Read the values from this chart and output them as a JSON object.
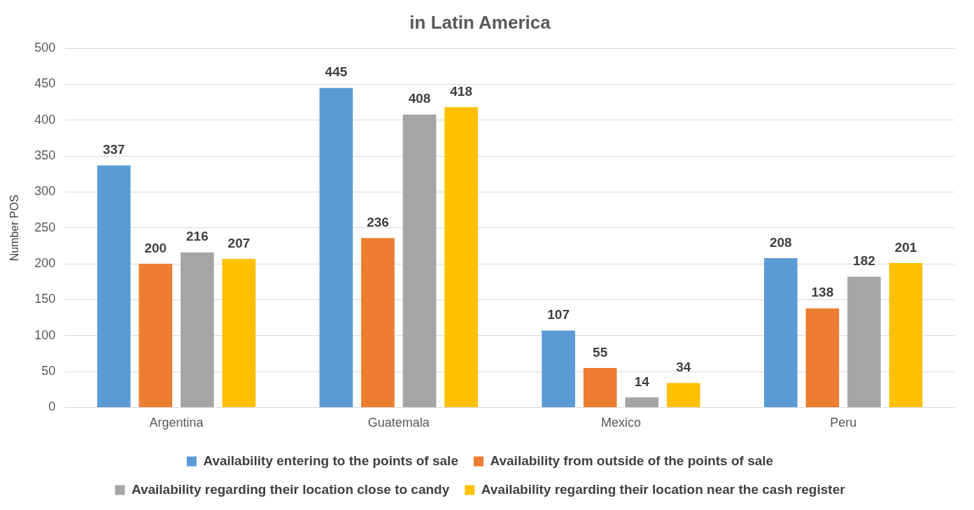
{
  "chart_data": {
    "type": "bar",
    "title": "in Latin America",
    "ylabel": "Number POS",
    "categories": [
      "Argentina",
      "Guatemala",
      "Mexico",
      "Peru"
    ],
    "series": [
      {
        "name": "Availability entering to the points of sale",
        "color": "#5b9bd5",
        "values": [
          337,
          445,
          107,
          208
        ]
      },
      {
        "name": "Availability from outside of the points of sale",
        "color": "#ed7d31",
        "values": [
          200,
          236,
          55,
          138
        ]
      },
      {
        "name": "Availability regarding their location close to candy",
        "color": "#a5a5a5",
        "values": [
          216,
          408,
          14,
          182
        ]
      },
      {
        "name": "Availability regarding their location near the cash register",
        "color": "#ffc000",
        "values": [
          207,
          418,
          34,
          201
        ]
      }
    ],
    "ylim": [
      0,
      500
    ],
    "yticks": [
      0,
      50,
      100,
      150,
      200,
      250,
      300,
      350,
      400,
      450,
      500
    ],
    "grid": "y",
    "legend": "bottom",
    "data_labels": true
  }
}
